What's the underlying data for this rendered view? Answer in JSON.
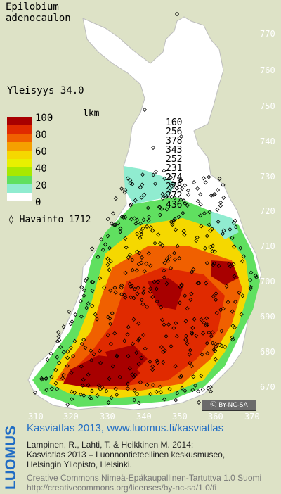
{
  "species": {
    "line1": "Epilobium",
    "line2": "adenocaulon"
  },
  "frequency_text": "Yleisyys  34.0",
  "legend": {
    "count_header": "lkm",
    "ticks": [
      "100",
      "80",
      "60",
      "40",
      "20",
      "0"
    ],
    "classes": [
      {
        "color": "#a80000",
        "count": "160"
      },
      {
        "color": "#e02a00",
        "count": "256"
      },
      {
        "color": "#f06000",
        "count": "378"
      },
      {
        "color": "#f5a000",
        "count": "343"
      },
      {
        "color": "#f5d800",
        "count": "252"
      },
      {
        "color": "#e8f000",
        "count": "231"
      },
      {
        "color": "#a8e800",
        "count": "274"
      },
      {
        "color": "#60e060",
        "count": "278"
      },
      {
        "color": "#90ecd0",
        "count": "272"
      },
      {
        "color": "#ffffff",
        "count": "436"
      }
    ],
    "observation_text": "◊ Havainto 1712"
  },
  "axes": {
    "y_labels": [
      "770",
      "760",
      "750",
      "740",
      "730",
      "720",
      "710",
      "700",
      "690",
      "680",
      "670"
    ],
    "x_labels": [
      "310",
      "320",
      "330",
      "340",
      "350",
      "360",
      "370"
    ]
  },
  "license_badge": "BY-NC-SA",
  "footer": {
    "brand": "LUOMUS",
    "title": "Kasviatlas 2013, www.luomus.fi/kasviatlas",
    "line1": "Lampinen, R., Lahti, T. & Heikkinen M. 2014:",
    "line2": "Kasviatlas 2013 – Luonnontieteellinen keskusmuseo,",
    "line3": "Helsingin Yliopisto, Helsinki.",
    "cc1": "Creative Commons Nimeä-Epäkaupallinen-Tartuttva 1.0 Suomi",
    "cc2": "http://creativecommons.org/licenses/by-nc-sa/1.0/fi"
  },
  "colors": {
    "background": "#dde2c6",
    "brand_blue": "#1f6cc4",
    "observation_marker": "#000000"
  }
}
